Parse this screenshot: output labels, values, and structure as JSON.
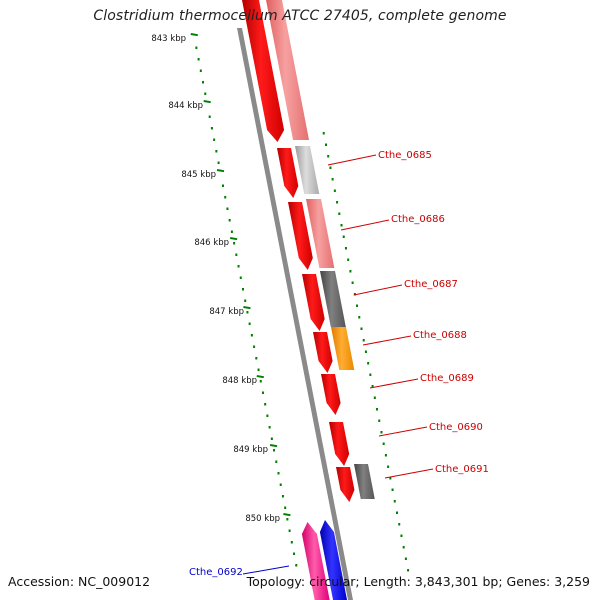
{
  "title": "Clostridium thermocellum ATCC 27405, complete genome",
  "footer": {
    "accession": "Accession: NC_009012",
    "topology": "Topology: circular; Length: 3,843,301 bp; Genes: 3,259"
  },
  "ticks": [
    "843 kbp",
    "844 kbp",
    "845 kbp",
    "846 kbp",
    "847 kbp",
    "848 kbp",
    "849 kbp",
    "850 kbp"
  ],
  "gene_labels": [
    {
      "text": "Cthe_0685",
      "color": "#cc0000"
    },
    {
      "text": "Cthe_0686",
      "color": "#cc0000"
    },
    {
      "text": "Cthe_0687",
      "color": "#cc0000"
    },
    {
      "text": "Cthe_0688",
      "color": "#cc0000"
    },
    {
      "text": "Cthe_0689",
      "color": "#cc0000"
    },
    {
      "text": "Cthe_0690",
      "color": "#cc0000"
    },
    {
      "text": "Cthe_0691",
      "color": "#cc0000"
    },
    {
      "text": "Cthe_0692",
      "color": "#0000cc"
    }
  ],
  "colors": {
    "cds": "#ff0000",
    "light_red": "#f08080",
    "grey": "#bbbbbb",
    "dark_grey": "#666666",
    "orange": "#ff9900",
    "pink": "#ff3399",
    "blue": "#0000ff",
    "backbone": "#888888",
    "ruler": "#008000"
  }
}
